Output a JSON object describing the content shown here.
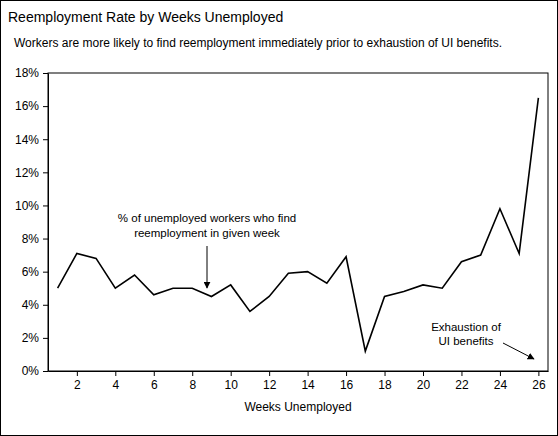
{
  "chart_data": {
    "type": "line",
    "title": "Reemployment Rate by Weeks Unemployed",
    "subtitle": "Workers are more likely to find reemployment immediately prior to exhaustion of UI benefits.",
    "x_label": "Weeks Unemployed",
    "x": [
      1,
      2,
      3,
      4,
      5,
      6,
      7,
      8,
      9,
      10,
      11,
      12,
      13,
      14,
      15,
      16,
      17,
      18,
      19,
      20,
      21,
      22,
      23,
      24,
      25,
      26
    ],
    "values": [
      5.0,
      7.1,
      6.8,
      5.0,
      5.8,
      4.6,
      5.0,
      5.0,
      4.5,
      5.2,
      3.6,
      4.5,
      5.9,
      6.0,
      5.3,
      6.9,
      1.2,
      4.5,
      4.8,
      5.2,
      5.0,
      6.6,
      7.0,
      9.8,
      7.1,
      16.5
    ],
    "color": "#000000",
    "xlim": [
      0.5,
      26.5
    ],
    "xticks": [
      2,
      4,
      6,
      8,
      10,
      12,
      14,
      16,
      18,
      20,
      22,
      24,
      26
    ],
    "ylim": [
      0,
      18
    ],
    "yticks": [
      {
        "value": 0,
        "label": "0%"
      },
      {
        "value": 2,
        "label": "2%"
      },
      {
        "value": 4,
        "label": "4%"
      },
      {
        "value": 6,
        "label": "6%"
      },
      {
        "value": 8,
        "label": "8%"
      },
      {
        "value": 10,
        "label": "10%"
      },
      {
        "value": 12,
        "label": "12%"
      },
      {
        "value": 14,
        "label": "14%"
      },
      {
        "value": 16,
        "label": "16%"
      },
      {
        "value": 18,
        "label": "18%"
      }
    ],
    "grid": false,
    "annotations": [
      {
        "text": [
          "% of unemployed workers who find",
          "reemployment in given week"
        ]
      },
      {
        "text": [
          "Exhaustion of",
          "UI benefits"
        ]
      }
    ]
  }
}
